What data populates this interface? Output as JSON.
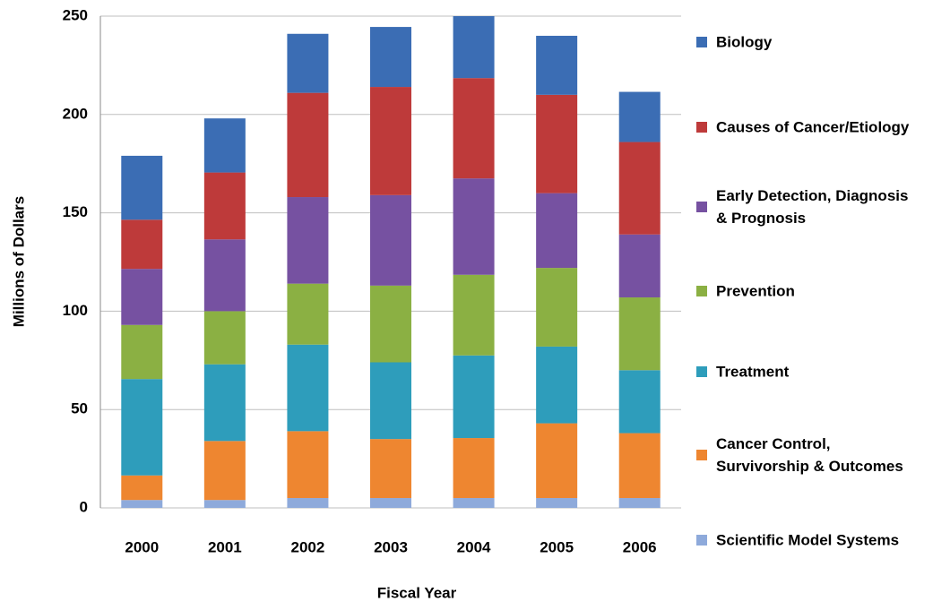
{
  "chart_data": {
    "type": "stacked_bar",
    "x_label": "Fiscal Year",
    "y_label": "Millions of Dollars",
    "categories": [
      "2000",
      "2001",
      "2002",
      "2003",
      "2004",
      "2005",
      "2006"
    ],
    "series": [
      {
        "name": "Scientific Model Systems",
        "color": "#8eaadb",
        "values": [
          4,
          4,
          5,
          5,
          5,
          5,
          5
        ]
      },
      {
        "name": "Cancer Control, Survivorship & Outcomes",
        "color": "#ee8630",
        "values": [
          12.5,
          30,
          34,
          30,
          30.5,
          38,
          33
        ]
      },
      {
        "name": "Treatment",
        "color": "#2e9dbb",
        "values": [
          49,
          39,
          44,
          39,
          42,
          39,
          32
        ]
      },
      {
        "name": "Prevention",
        "color": "#8bb043",
        "values": [
          27.5,
          27,
          31,
          39,
          41,
          40,
          37
        ]
      },
      {
        "name": "Early Detection, Diagnosis & Prognosis",
        "color": "#7651a1",
        "values": [
          28.5,
          36.5,
          44,
          46,
          49,
          38,
          32
        ]
      },
      {
        "name": "Causes of Cancer/Etiology",
        "color": "#be3a3a",
        "values": [
          25,
          34,
          53,
          55,
          51,
          50,
          47
        ]
      },
      {
        "name": "Biology",
        "color": "#3b6db4",
        "values": [
          32.5,
          27.5,
          30,
          30.5,
          31.5,
          30,
          25.5
        ]
      }
    ],
    "ylim": [
      0,
      250
    ],
    "yticks": [
      0,
      50,
      100,
      150,
      200,
      250
    ],
    "grid": true
  }
}
